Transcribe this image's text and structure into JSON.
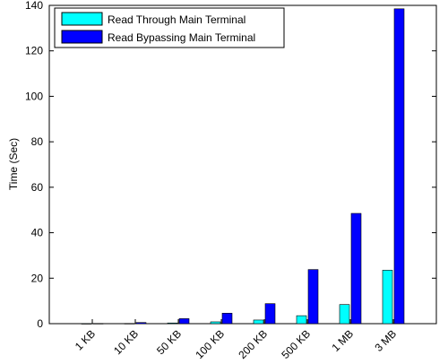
{
  "chart_data": {
    "type": "bar",
    "title": "",
    "xlabel": "",
    "ylabel": "Time (Sec)",
    "ylim": [
      0,
      140
    ],
    "yticks": [
      0,
      20,
      40,
      60,
      80,
      100,
      120,
      140
    ],
    "grid": false,
    "legend_position": "top-left",
    "categories": [
      "1 KB",
      "10 KB",
      "50 KB",
      "100 KB",
      "200 KB",
      "500 KB",
      "1 MB",
      "3 MB"
    ],
    "series": [
      {
        "name": "Read Through Main Terminal",
        "color": "#00ffff",
        "values": [
          0.05,
          0.1,
          0.3,
          0.8,
          1.6,
          3.5,
          8.4,
          23.5
        ]
      },
      {
        "name": "Read Bypassing Main Terminal",
        "color": "#0000ff",
        "values": [
          0.1,
          0.5,
          2.2,
          4.6,
          8.8,
          23.8,
          48.5,
          138.5
        ]
      }
    ]
  }
}
